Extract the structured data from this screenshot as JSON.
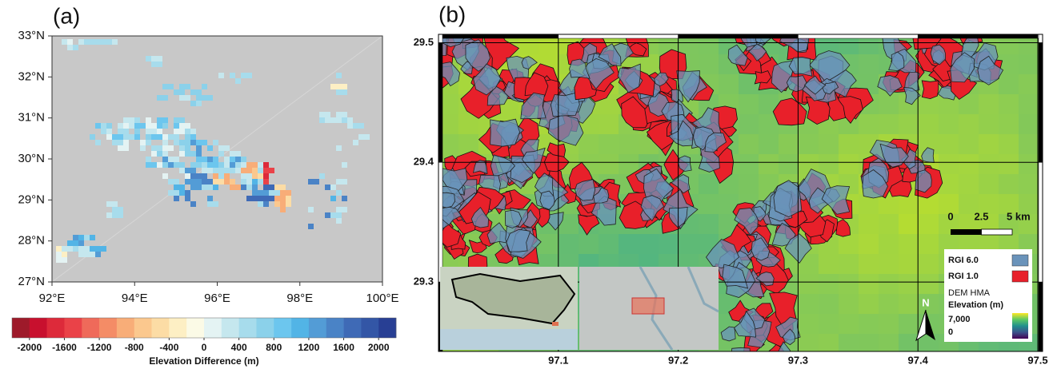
{
  "panel_a": {
    "label": "(a)",
    "background": "#c8c8c8",
    "xlim": [
      92,
      100
    ],
    "ylim": [
      27,
      33
    ],
    "xticks": [
      {
        "value": 92,
        "label": "92°E"
      },
      {
        "value": 94,
        "label": "94°E"
      },
      {
        "value": 96,
        "label": "96°E"
      },
      {
        "value": 98,
        "label": "98°E"
      },
      {
        "value": 100,
        "label": "100°E"
      }
    ],
    "yticks": [
      {
        "value": 27,
        "label": "27°N"
      },
      {
        "value": 28,
        "label": "28°N"
      },
      {
        "value": 29,
        "label": "29°N"
      },
      {
        "value": 30,
        "label": "30°N"
      },
      {
        "value": 31,
        "label": "31°N"
      },
      {
        "value": 32,
        "label": "32°N"
      },
      {
        "value": 33,
        "label": "33°N"
      }
    ],
    "colorbar": {
      "title": "Elevation Difference (m)",
      "lim": [
        -2200,
        2200
      ],
      "ticks": [
        -2000,
        -1600,
        -1200,
        -800,
        -400,
        0,
        400,
        800,
        1200,
        1600,
        2000
      ],
      "colors": [
        "#9e1a2a",
        "#c8102e",
        "#dd2a3a",
        "#ea4248",
        "#ef6a5a",
        "#f48c66",
        "#f8ad78",
        "#fbc88e",
        "#fcdca5",
        "#fdefc4",
        "#fbfae6",
        "#e4f3f3",
        "#c5e7ee",
        "#a7dcec",
        "#8bd1ea",
        "#6cc6ee",
        "#52b4e6",
        "#539cd6",
        "#4a83c6",
        "#3f6ab6",
        "#3356a6",
        "#283f94"
      ]
    }
  },
  "panel_b": {
    "label": "(b)",
    "xlim": [
      97.0,
      97.504
    ],
    "ylim": [
      29.242,
      29.507
    ],
    "xticks": [
      97.1,
      97.2,
      97.3,
      97.4,
      97.5
    ],
    "yticks": [
      29.3,
      29.4,
      29.5
    ],
    "scale_bar": [
      0,
      2.5,
      {
        "value": 5,
        "label": "5 km"
      }
    ],
    "legend": {
      "items": [
        {
          "name": "RGI 6.0",
          "color": "#6a93ba"
        },
        {
          "name": "RGI 1.0",
          "color": "#e8202a"
        }
      ],
      "dem_title": "DEM HMA",
      "elevation_title": "Elevation (m)",
      "elevation_lim": [
        0,
        7000
      ],
      "elevation_ticks": [
        {
          "value": 7000,
          "label": "7,000"
        },
        0
      ]
    },
    "north": "N"
  }
}
